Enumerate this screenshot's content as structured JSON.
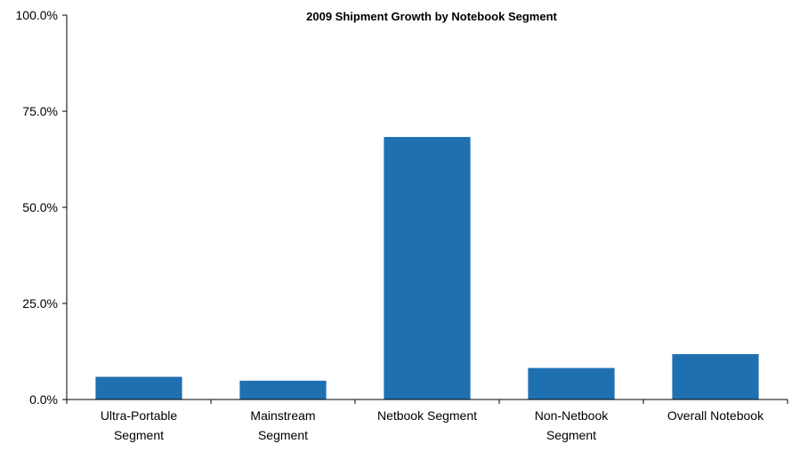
{
  "chart_data": {
    "type": "bar",
    "title": "2009 Shipment Growth by Notebook Segment",
    "xlabel": "",
    "ylabel": "",
    "categories": [
      [
        "Ultra-Portable",
        "Segment"
      ],
      [
        "Mainstream",
        "Segment"
      ],
      [
        "Netbook Segment"
      ],
      [
        "Non-Netbook",
        "Segment"
      ],
      [
        "Overall Notebook"
      ]
    ],
    "values": [
      5.9,
      4.9,
      68.3,
      8.2,
      11.8
    ],
    "ylim": [
      0,
      100
    ],
    "yticks": [
      "0.0%",
      "25.0%",
      "50.0%",
      "75.0%",
      "100.0%"
    ],
    "grid": false,
    "legend": "none",
    "bar_color": "#1f70b1"
  }
}
